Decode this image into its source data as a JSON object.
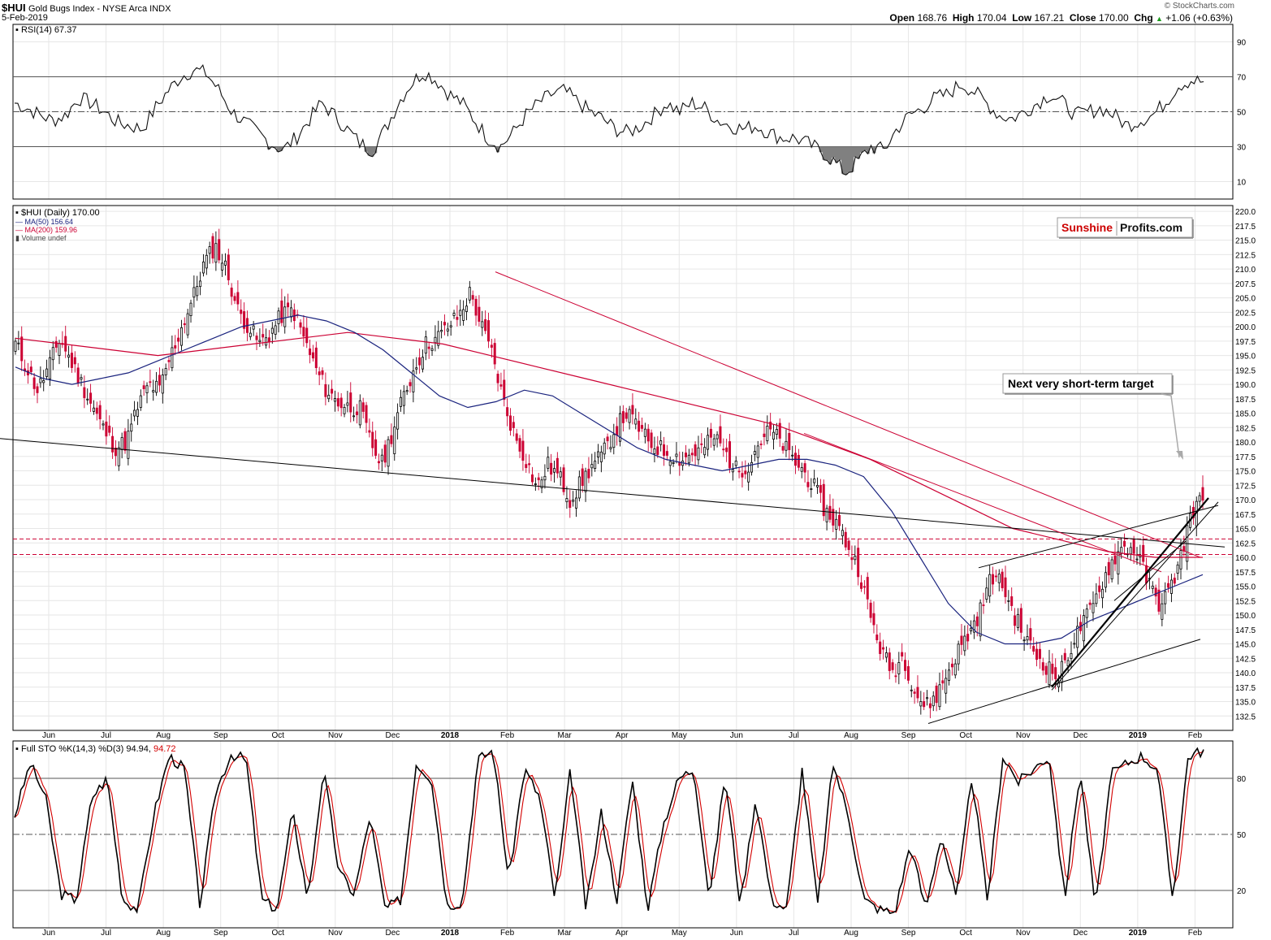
{
  "header": {
    "symbol": "$HUI",
    "name": "Gold Bugs Index - NYSE Arca INDX",
    "date": "5-Feb-2019",
    "open_label": "Open",
    "open": "168.76",
    "high_label": "High",
    "high": "170.04",
    "low_label": "Low",
    "low": "167.21",
    "close_label": "Close",
    "close": "170.00",
    "chg_label": "Chg",
    "chg": "+1.06 (+0.63%)",
    "chg_arrow": "▲",
    "watermark": "© StockCharts.com"
  },
  "legend": {
    "rsi": "RSI(14) 67.37",
    "price": "$HUI (Daily) 170.00",
    "ma50": "MA(50) 156.64",
    "ma200": "MA(200) 159.96",
    "volume": "Volume undef",
    "sto_k": "Full STO %K(14,3) %D(3) 94.94,",
    "sto_d": "94.72"
  },
  "logo": {
    "part1": "Sunshine",
    "part2": "Profits.com"
  },
  "annotation": "Next very short-term target",
  "colors": {
    "up": "#000000",
    "down": "#cc0033",
    "ma50": "#1a237e",
    "ma200": "#cc0033",
    "grid": "#e6e6e6",
    "rsi_fill": "#808080",
    "sto_d": "#d40000"
  },
  "chart_data": [
    {
      "type": "line",
      "panel": "rsi",
      "series": [
        {
          "name": "RSI(14)",
          "values": [
            55,
            52,
            48,
            45,
            48,
            58,
            55,
            50,
            44,
            42,
            40,
            52,
            62,
            70,
            74,
            72,
            62,
            50,
            44,
            38,
            32,
            28,
            35,
            45,
            55,
            48,
            40,
            32,
            28,
            40,
            55,
            66,
            73,
            68,
            60,
            55,
            45,
            35,
            30,
            38,
            48,
            55,
            60,
            62,
            56,
            50,
            46,
            40,
            38,
            42,
            48,
            55,
            50,
            55,
            52,
            45,
            42,
            40,
            42,
            38,
            35,
            35,
            32,
            28,
            22,
            15,
            22,
            30,
            28,
            40,
            48,
            52,
            58,
            60,
            66,
            62,
            55,
            48,
            46,
            50,
            55,
            60,
            55,
            48,
            50,
            52,
            48,
            42,
            45,
            48,
            55,
            65,
            68,
            67
          ]
        }
      ],
      "ylim": [
        0,
        100
      ],
      "yticks": [
        10,
        30,
        50,
        70,
        90
      ],
      "levels": [
        30,
        50,
        70
      ]
    },
    {
      "type": "candlestick",
      "panel": "price",
      "x_months": [
        "Jun",
        "Jul",
        "Aug",
        "Sep",
        "Oct",
        "Nov",
        "Dec",
        "2018",
        "Feb",
        "Mar",
        "Apr",
        "May",
        "Jun",
        "Jul",
        "Aug",
        "Sep",
        "Oct",
        "Nov",
        "Dec",
        "2019",
        "Feb"
      ],
      "close_path": [
        197,
        193,
        189,
        193,
        198,
        194,
        190,
        186,
        182,
        179,
        180,
        186,
        190,
        189,
        195,
        200,
        205,
        211,
        214,
        210,
        203,
        200,
        197,
        199,
        202,
        203,
        198,
        193,
        189,
        187,
        186,
        186,
        180,
        176,
        182,
        188,
        193,
        197,
        198,
        200,
        202,
        206,
        200,
        195,
        187,
        181,
        177,
        172,
        176,
        174,
        170,
        173,
        176,
        178,
        182,
        185,
        183,
        180,
        179,
        178,
        177,
        178,
        179,
        181,
        178,
        175,
        176,
        180,
        182,
        180,
        177,
        175,
        172,
        168,
        166,
        162,
        158,
        150,
        144,
        140,
        143,
        137,
        134,
        136,
        140,
        144,
        147,
        151,
        157,
        155,
        150,
        146,
        143,
        141,
        139,
        144,
        148,
        151,
        156,
        160,
        162,
        161,
        156,
        152,
        154,
        160,
        168,
        170
      ],
      "ma50": [
        193,
        191,
        190,
        191,
        192,
        194,
        196,
        198,
        200,
        201,
        202,
        201,
        199,
        196,
        192,
        188,
        186,
        187,
        189,
        188,
        185,
        182,
        179,
        177,
        176,
        175,
        176,
        177,
        177,
        176,
        174,
        168,
        160,
        152,
        147,
        145,
        145,
        146,
        149,
        151,
        153,
        155,
        157
      ],
      "ma200": [
        198,
        197,
        196,
        195,
        196,
        197,
        198,
        199,
        198,
        197,
        195,
        193,
        191,
        189,
        187,
        185,
        183,
        180,
        177,
        173,
        169,
        165,
        163,
        161,
        160,
        160
      ],
      "ylim": [
        130,
        221
      ],
      "yticks": [
        132.5,
        135.0,
        137.5,
        140.0,
        142.5,
        145.0,
        147.5,
        150.0,
        152.5,
        155.0,
        157.5,
        160.0,
        162.5,
        165.0,
        167.5,
        170.0,
        172.5,
        175.0,
        177.5,
        180.0,
        182.5,
        185.0,
        187.5,
        190.0,
        192.5,
        195.0,
        197.5,
        200.0,
        202.5,
        205.0,
        207.5,
        210.0,
        212.5,
        215.0,
        217.5,
        220.0
      ],
      "support_levels": [
        163.2,
        160.5
      ]
    },
    {
      "type": "line",
      "panel": "stochastic",
      "series": [
        {
          "name": "%K",
          "values": [
            60,
            88,
            70,
            18,
            15,
            70,
            80,
            15,
            10,
            60,
            92,
            85,
            12,
            72,
            93,
            90,
            15,
            10,
            62,
            15,
            85,
            30,
            18,
            60,
            10,
            15,
            88,
            80,
            12,
            14,
            90,
            95,
            25,
            85,
            70,
            15,
            85,
            10,
            62,
            15,
            80,
            10,
            55,
            80,
            85,
            15,
            82,
            12,
            70,
            15,
            10,
            85,
            12,
            88,
            60,
            15,
            10,
            8,
            45,
            10,
            50,
            15,
            82,
            14,
            92,
            78,
            85,
            92,
            15,
            85,
            10,
            82,
            88,
            92,
            85,
            15,
            92,
            95
          ]
        },
        {
          "name": "%D",
          "values": []
        }
      ],
      "ylim": [
        0,
        100
      ],
      "yticks": [
        20,
        50,
        80
      ],
      "levels": [
        20,
        50,
        80
      ]
    }
  ]
}
